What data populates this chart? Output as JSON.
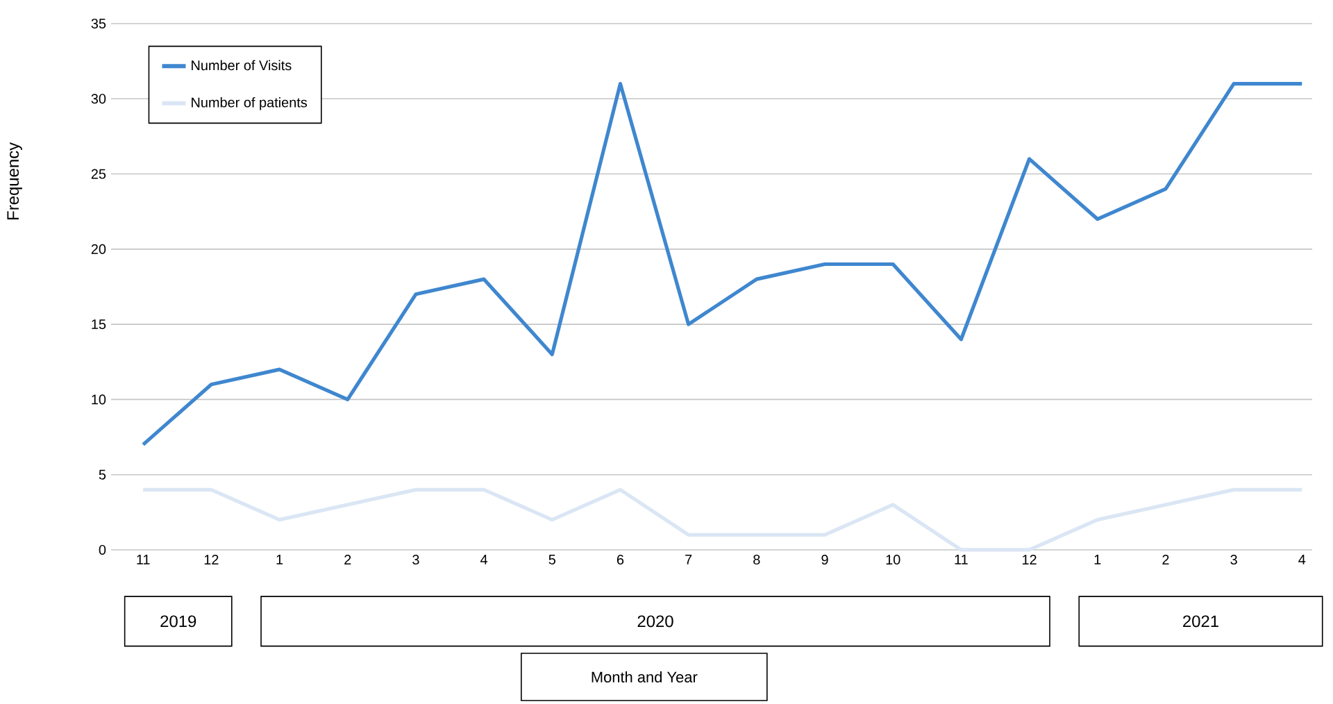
{
  "chart_data": {
    "type": "line",
    "ylabel": "Frequency",
    "categories": [
      "11",
      "12",
      "1",
      "2",
      "3",
      "4",
      "5",
      "6",
      "7",
      "8",
      "9",
      "10",
      "11",
      "12",
      "1",
      "2",
      "3",
      "4"
    ],
    "series": [
      {
        "name": "Number of Visits",
        "color": "#3f87cf",
        "values": [
          7,
          11,
          12,
          10,
          17,
          18,
          13,
          31,
          15,
          18,
          19,
          19,
          14,
          26,
          22,
          24,
          31,
          31
        ]
      },
      {
        "name": "Number of patients",
        "color": "#dae6f4",
        "values": [
          4,
          4,
          2,
          3,
          4,
          4,
          2,
          4,
          1,
          1,
          1,
          3,
          0,
          0,
          2,
          3,
          4,
          4
        ]
      }
    ],
    "annotations": [
      "2019",
      "2020",
      "2021",
      "Month and Year"
    ],
    "ylim": [
      0,
      35
    ],
    "yticks": [
      0,
      5,
      10,
      15,
      20,
      25,
      30,
      35
    ],
    "grid": "y",
    "legend": "top left",
    "marker": "none",
    "line_style": "solid"
  }
}
